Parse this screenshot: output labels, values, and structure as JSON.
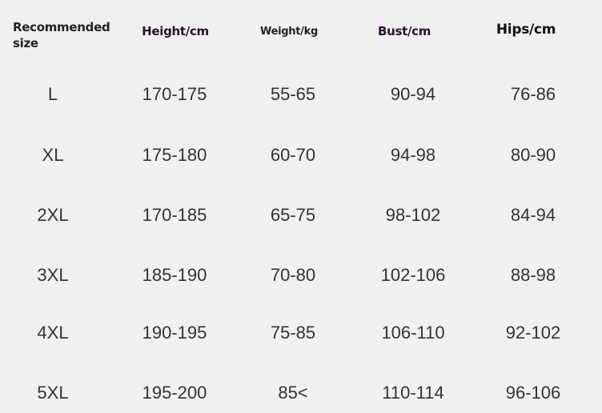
{
  "headers": {
    "size_line1": "Recommended",
    "size_line2": "size",
    "height": "Height/cm",
    "weight": "Weight/kg",
    "bust": "Bust/cm",
    "hips": "Hips/cm"
  },
  "colors": {
    "background": "#f0f0f0",
    "text": "#333333",
    "header_purple": "#2a1030"
  },
  "rows": [
    {
      "size": "L",
      "height": "170-175",
      "weight": "55-65",
      "bust": "90-94",
      "hips": "76-86"
    },
    {
      "size": "XL",
      "height": "175-180",
      "weight": "60-70",
      "bust": "94-98",
      "hips": "80-90"
    },
    {
      "size": "2XL",
      "height": "170-185",
      "weight": "65-75",
      "bust": "98-102",
      "hips": "84-94"
    },
    {
      "size": "3XL",
      "height": "185-190",
      "weight": "70-80",
      "bust": "102-106",
      "hips": "88-98"
    },
    {
      "size": "4XL",
      "height": "190-195",
      "weight": "75-85",
      "bust": "106-110",
      "hips": "92-102"
    },
    {
      "size": "5XL",
      "height": "195-200",
      "weight": "85<",
      "bust": "110-114",
      "hips": "96-106"
    }
  ]
}
